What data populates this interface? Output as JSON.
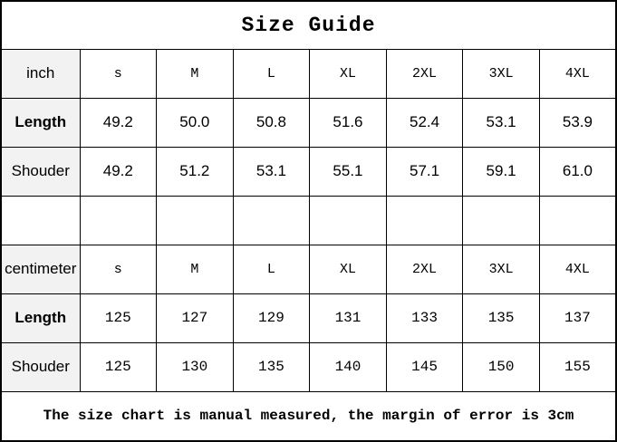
{
  "page_title": "Size Guide",
  "footer_note": "The size chart is manual measured, the margin of error is 3cm",
  "colors": {
    "label_bg": "#f2f2f2",
    "border": "#000000",
    "text": "#000000",
    "background": "#ffffff"
  },
  "table": {
    "columns_count": 8,
    "sections": [
      {
        "unit_label": "inch",
        "sizes": [
          "s",
          "M",
          "L",
          "XL",
          "2XL",
          "3XL",
          "4XL"
        ],
        "rows": [
          {
            "label": "Length",
            "bold": true,
            "values": [
              "49.2",
              "50.0",
              "50.8",
              "51.6",
              "52.4",
              "53.1",
              "53.9"
            ]
          },
          {
            "label": "Shouder",
            "bold": false,
            "values": [
              "49.2",
              "51.2",
              "53.1",
              "55.1",
              "57.1",
              "59.1",
              "61.0"
            ]
          }
        ]
      },
      {
        "unit_label": "centimeter",
        "sizes": [
          "s",
          "M",
          "L",
          "XL",
          "2XL",
          "3XL",
          "4XL"
        ],
        "rows": [
          {
            "label": "Length",
            "bold": true,
            "values": [
              "125",
              "127",
              "129",
              "131",
              "133",
              "135",
              "137"
            ]
          },
          {
            "label": "Shouder",
            "bold": false,
            "values": [
              "125",
              "130",
              "135",
              "140",
              "145",
              "150",
              "155"
            ]
          }
        ]
      }
    ],
    "spacer_between_sections": true
  }
}
